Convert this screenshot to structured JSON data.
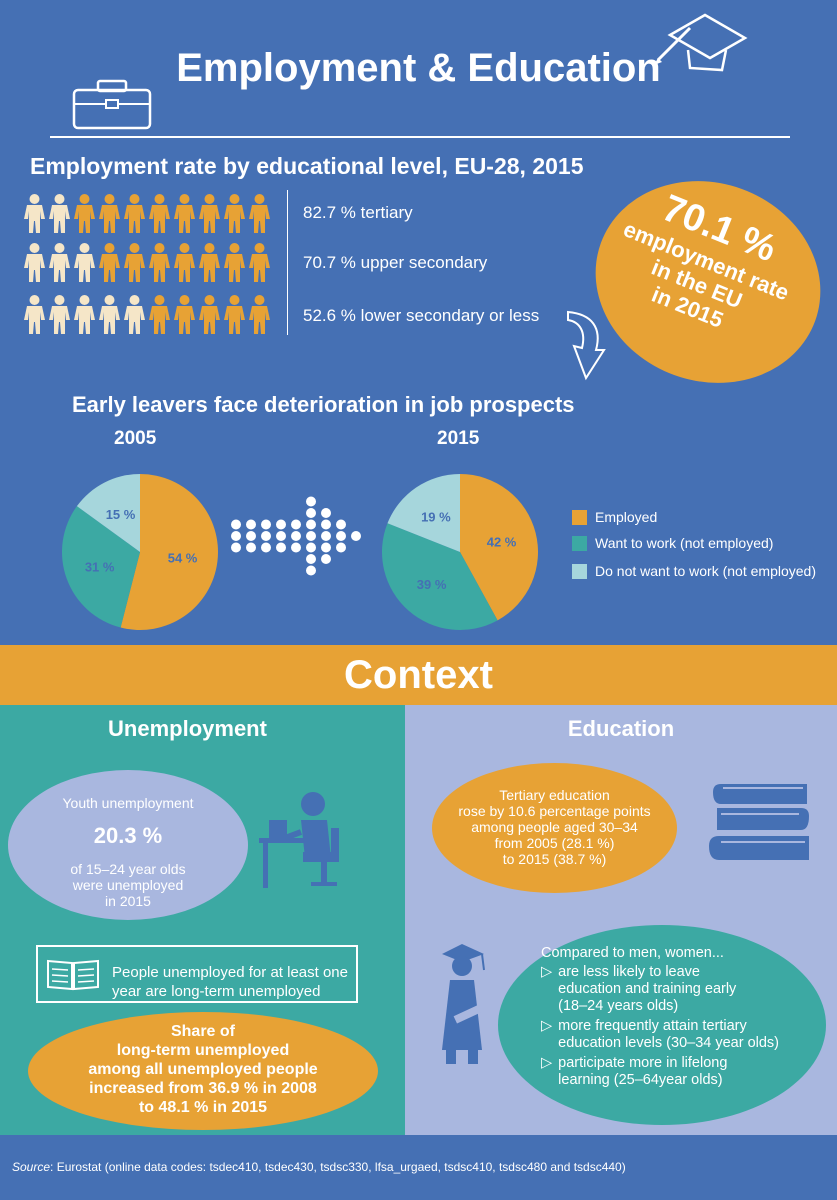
{
  "title": "Employment & Education",
  "employment": {
    "heading": "Employment rate by educational level, EU-28, 2015",
    "rows": [
      {
        "label": "82.7 % tertiary",
        "value": 82.7
      },
      {
        "label": "70.7 % upper secondary",
        "value": 70.7
      },
      {
        "label": "52.6 % lower secondary or less",
        "value": 52.6
      }
    ],
    "circle": {
      "pct": "70.1 %",
      "line1": "employment rate",
      "line2": "in the EU",
      "line3": "in 2015"
    }
  },
  "early_leavers": {
    "heading": "Early leavers face deterioration in job prospects",
    "year_2005": "2005",
    "year_2015": "2015",
    "pie_2005": [
      {
        "label": "54 %",
        "value": 54
      },
      {
        "label": "31 %",
        "value": 31
      },
      {
        "label": "15 %",
        "value": 15
      }
    ],
    "pie_2015": [
      {
        "label": "42 %",
        "value": 42
      },
      {
        "label": "39 %",
        "value": 39
      },
      {
        "label": "19 %",
        "value": 19
      }
    ],
    "legend": [
      {
        "label": "Employed",
        "color": "#e7a235"
      },
      {
        "label": "Want to work (not employed)",
        "color": "#3ca9a3"
      },
      {
        "label": "Do not want to work (not employed)",
        "color": "#a6d6dc"
      }
    ]
  },
  "context": {
    "title": "Context",
    "unemployment": {
      "title": "Unemployment",
      "youth_label": "Youth unemployment",
      "youth_pct": "20.3 %",
      "youth_line1": "of 15–24 year olds",
      "youth_line2": "were unemployed",
      "youth_line3": "in 2015",
      "box_line1": "People unemployed for at least one",
      "box_line2": "year are long-term unemployed",
      "share_line1": "Share of",
      "share_line2": "long-term unemployed",
      "share_line3": "among all unemployed people",
      "share_line4": "increased from 36.9 % in 2008",
      "share_line5": "to 48.1 % in 2015"
    },
    "education": {
      "title": "Education",
      "tertiary_line1": "Tertiary education",
      "tertiary_line2": "rose by 10.6 percentage points",
      "tertiary_line3": "among people aged 30–34",
      "tertiary_line4": "from 2005 (28.1 %)",
      "tertiary_line5": "to 2015 (38.7 %)",
      "women_intro": "Compared to men, women...",
      "women_items": [
        {
          "l1": "are less likely to leave",
          "l2": "education and training early",
          "l3": "(18–24 years olds)"
        },
        {
          "l1": "more frequently attain tertiary",
          "l2": "education levels (30–34 year olds)",
          "l3": ""
        },
        {
          "l1": "participate more in lifelong",
          "l2": "learning (25–64year olds)",
          "l3": ""
        }
      ]
    }
  },
  "footer": {
    "source_label": "Source",
    "source_text": ": Eurostat (online data codes: tsdec410, tsdec430, tsdsc330, lfsa_urgaed, tsdsc410, tsdsc480 and tsdsc440)"
  }
}
